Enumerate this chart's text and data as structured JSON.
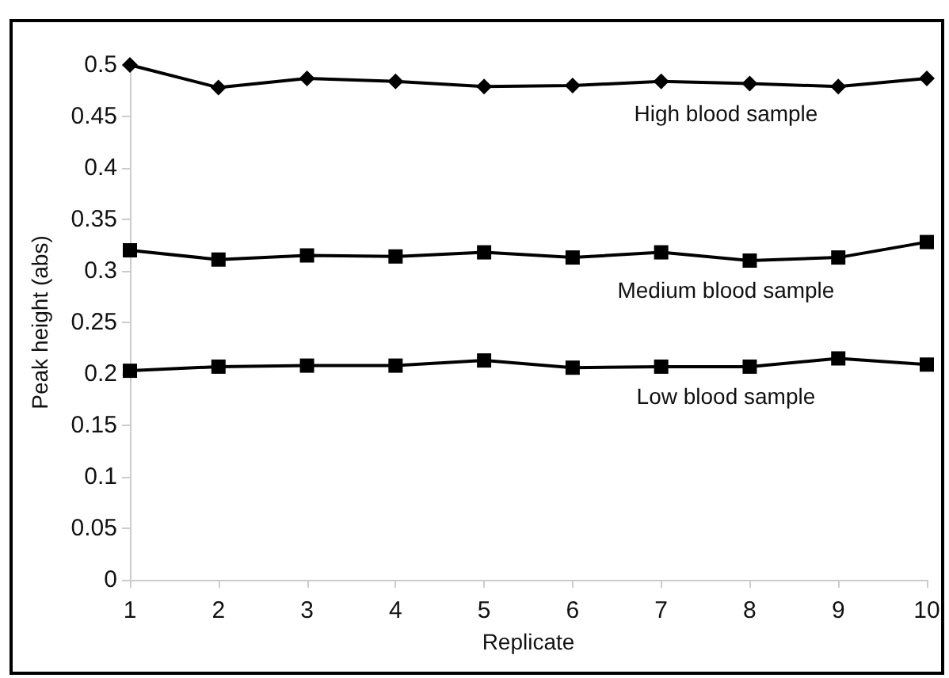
{
  "chart_data": {
    "type": "line",
    "xlabel": "Replicate",
    "ylabel": "Peak height (abs)",
    "categories": [
      "1",
      "2",
      "3",
      "4",
      "5",
      "6",
      "7",
      "8",
      "9",
      "10"
    ],
    "series": [
      {
        "name": "High blood sample",
        "color": "#000000",
        "marker": "diamond",
        "values": [
          0.5,
          0.478,
          0.487,
          0.484,
          0.479,
          0.48,
          0.484,
          0.482,
          0.479,
          0.487
        ]
      },
      {
        "name": "Medium blood sample",
        "color": "#000000",
        "marker": "square",
        "values": [
          0.32,
          0.311,
          0.315,
          0.314,
          0.318,
          0.313,
          0.318,
          0.31,
          0.313,
          0.328
        ]
      },
      {
        "name": "Low blood sample",
        "color": "#000000",
        "marker": "square",
        "values": [
          0.203,
          0.207,
          0.208,
          0.208,
          0.213,
          0.206,
          0.207,
          0.207,
          0.215,
          0.209
        ]
      }
    ],
    "ylim": [
      0,
      0.5
    ],
    "yticks": [
      0,
      0.05,
      0.1,
      0.15,
      0.2,
      0.25,
      0.3,
      0.35,
      0.4,
      0.45,
      0.5
    ],
    "grid": false,
    "legend": false,
    "line_style": "solid"
  }
}
